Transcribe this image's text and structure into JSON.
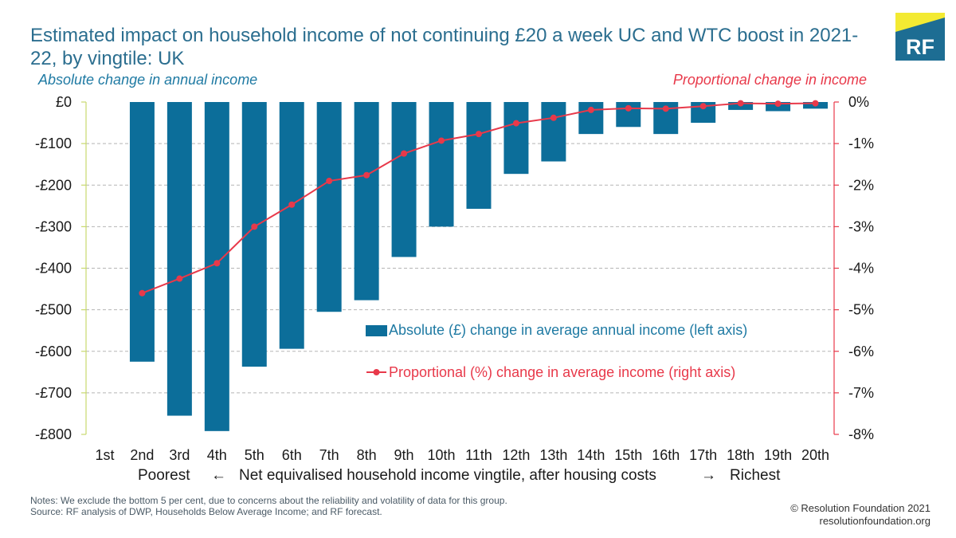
{
  "title": "Estimated impact on household income of not continuing £20 a week UC and WTC boost in 2021-22, by vingtile: UK",
  "logo_text": "RF",
  "chart_data": {
    "type": "bar",
    "categories": [
      "1st",
      "2nd",
      "3rd",
      "4th",
      "5th",
      "6th",
      "7th",
      "8th",
      "9th",
      "10th",
      "11th",
      "12th",
      "13th",
      "14th",
      "15th",
      "16th",
      "17th",
      "18th",
      "19th",
      "20th"
    ],
    "ylabel": "Absolute change in annual income",
    "y2label": "Proportional change in income",
    "ylim": [
      -800,
      0
    ],
    "y2lim": [
      -8,
      0
    ],
    "yticks": [
      "£0",
      "-£100",
      "-£200",
      "-£300",
      "-£400",
      "-£500",
      "-£600",
      "-£700",
      "-£800"
    ],
    "y2ticks": [
      "0%",
      "-1%",
      "-2%",
      "-3%",
      "-4%",
      "-5%",
      "-6%",
      "-7%",
      "-8%"
    ],
    "grid": true,
    "series": [
      {
        "name": "Absolute (£) change in average annual income (left axis)",
        "type": "bar",
        "axis": "left",
        "color": "#0c6e9a",
        "values": [
          null,
          -625,
          -755,
          -792,
          -637,
          -594,
          -505,
          -477,
          -373,
          -300,
          -257,
          -173,
          -143,
          -77,
          -60,
          -77,
          -50,
          -19,
          -22,
          -16
        ]
      },
      {
        "name": "Proportional (%) change in average income (right axis)",
        "type": "line",
        "axis": "right",
        "color": "#e8394a",
        "values": [
          null,
          -4.6,
          -4.25,
          -3.88,
          -3.0,
          -2.47,
          -1.9,
          -1.76,
          -1.24,
          -0.93,
          -0.77,
          -0.51,
          -0.38,
          -0.19,
          -0.15,
          -0.16,
          -0.1,
          -0.03,
          -0.04,
          -0.03
        ]
      }
    ]
  },
  "x_axis": {
    "left_label": "Poorest",
    "left_arrow": "←",
    "center_label": "Net equivalised household income vingtile, after housing costs",
    "right_arrow": "→",
    "right_label": "Richest"
  },
  "notes": {
    "line1": "Notes: We exclude the bottom 5 per cent, due to concerns about the reliability and volatility of data for this group.",
    "line2": "Source: RF analysis of DWP, Households Below Average Income; and RF forecast."
  },
  "credit": {
    "copyright": "© Resolution Foundation 2021",
    "website": "resolutionfoundation.org"
  },
  "colors": {
    "title": "#2b6e8f",
    "bar": "#0c6e9a",
    "line": "#e8394a",
    "logo_bg": "#1d6d93",
    "logo_accent": "#f3ea32"
  }
}
